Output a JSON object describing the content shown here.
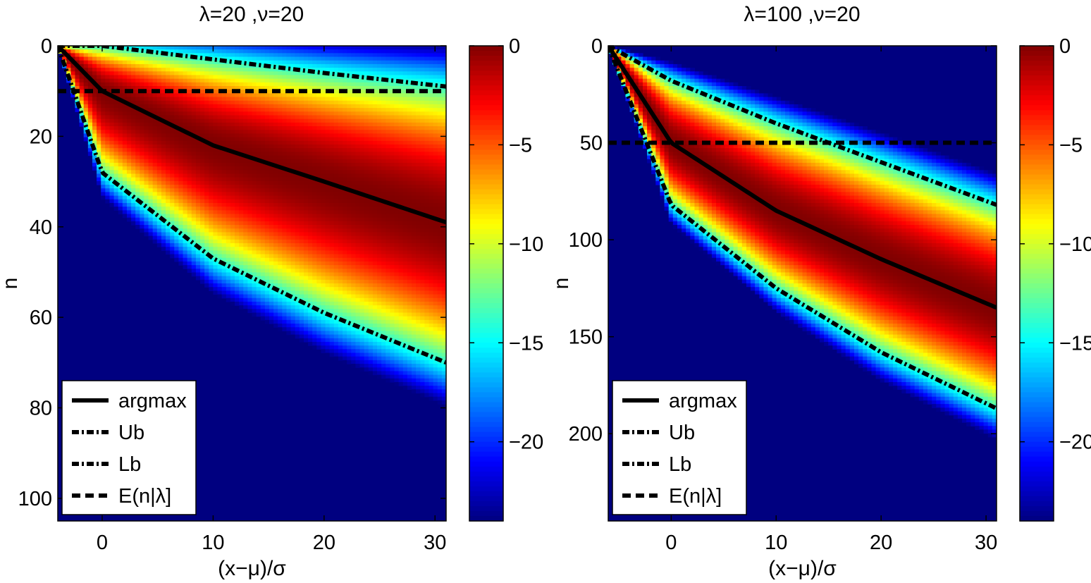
{
  "chart_data": [
    {
      "type": "heatmap",
      "title": "λ=20 ,ν=20",
      "xlabel": "(x−μ)/σ",
      "ylabel": "n",
      "xlim": [
        -4,
        31
      ],
      "ylim": [
        0,
        105
      ],
      "y_reversed": true,
      "xticks": [
        0,
        10,
        20,
        30
      ],
      "yticks": [
        0,
        20,
        40,
        60,
        80,
        100
      ],
      "colorbar": {
        "range": [
          -24,
          0
        ],
        "ticks": [
          0,
          -5,
          -10,
          -15,
          -20
        ],
        "colormap": "jet"
      },
      "model": {
        "lambda": 20,
        "nu": 20
      },
      "series": [
        {
          "name": "argmax",
          "style": "solid",
          "x": [
            -4,
            0,
            10,
            20,
            31
          ],
          "y": [
            0,
            10,
            22,
            30,
            39
          ]
        },
        {
          "name": "Ub",
          "style": "dash-dot",
          "x": [
            -4,
            0,
            10,
            20,
            31
          ],
          "y": [
            0,
            0,
            3,
            6,
            9
          ]
        },
        {
          "name": "Lb",
          "style": "dash-dot",
          "x": [
            -4,
            0,
            10,
            20,
            31
          ],
          "y": [
            0,
            28,
            47,
            59,
            70
          ]
        },
        {
          "name": "E(n|λ]",
          "style": "dashed",
          "x": [
            -4,
            31
          ],
          "y": [
            10,
            10
          ]
        }
      ],
      "legend": [
        "argmax",
        "Ub",
        "Lb",
        "E(n|λ]"
      ],
      "legend_position": "bottom-left"
    },
    {
      "type": "heatmap",
      "title": "λ=100 ,ν=20",
      "xlabel": "(x−μ)/σ",
      "ylabel": "n",
      "xlim": [
        -6,
        31
      ],
      "ylim": [
        0,
        245
      ],
      "y_reversed": true,
      "xticks": [
        0,
        10,
        20,
        30
      ],
      "yticks": [
        0,
        50,
        100,
        150,
        200
      ],
      "colorbar": {
        "range": [
          -24,
          0
        ],
        "ticks": [
          0,
          -5,
          -10,
          -15,
          -20
        ],
        "colormap": "jet"
      },
      "model": {
        "lambda": 100,
        "nu": 20
      },
      "series": [
        {
          "name": "argmax",
          "style": "solid",
          "x": [
            -6,
            0,
            10,
            20,
            31
          ],
          "y": [
            0,
            50,
            85,
            110,
            135
          ]
        },
        {
          "name": "Ub",
          "style": "dash-dot",
          "x": [
            -6,
            0,
            10,
            20,
            31
          ],
          "y": [
            0,
            18,
            40,
            60,
            82
          ]
        },
        {
          "name": "Lb",
          "style": "dash-dot",
          "x": [
            -6,
            0,
            10,
            20,
            31
          ],
          "y": [
            0,
            82,
            125,
            158,
            187
          ]
        },
        {
          "name": "E(n|λ]",
          "style": "dashed",
          "x": [
            -6,
            31
          ],
          "y": [
            50,
            50
          ]
        }
      ],
      "legend": [
        "argmax",
        "Ub",
        "Lb",
        "E(n|λ]"
      ],
      "legend_position": "bottom-left"
    }
  ]
}
